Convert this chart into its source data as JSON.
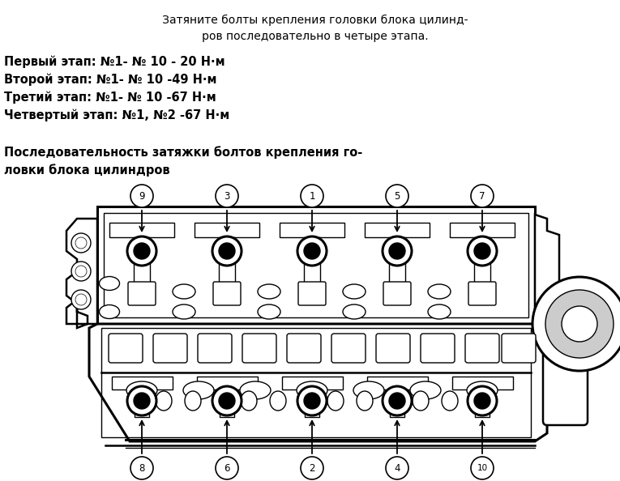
{
  "title_text": "   Затяните болты крепления головки блока цилинд-\n   ров последовательно в четыре этапа.",
  "step1": "Первый этап: №1- № 10 - 20 Н·м",
  "step2": "Второй этап: №1- № 10 -49 Н·м",
  "step3": "Третий этап: №1- № 10 -67 Н·м",
  "step4": "Четвертый этап: №1, №2 -67 Н·м",
  "subtitle": "Последовательность затяжки болтов крепления го-\nловки блока цилиндров",
  "bg_color": "#ffffff",
  "text_color": "#000000",
  "top_numbers": [
    "9",
    "3",
    "1",
    "5",
    "7"
  ],
  "bot_numbers": [
    "8",
    "6",
    "2",
    "4",
    "10"
  ],
  "figsize": [
    7.65,
    5.94
  ],
  "dpi": 100
}
